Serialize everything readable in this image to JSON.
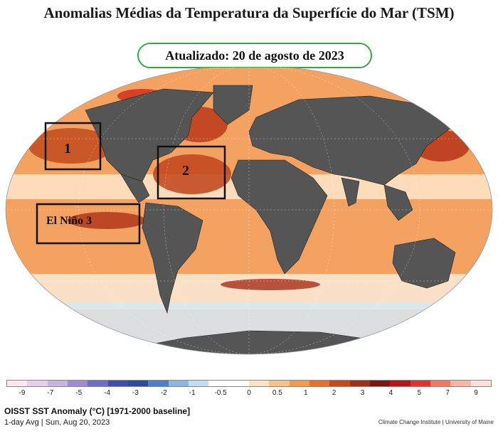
{
  "title": "Anomalias Médias da Temperatura da Superfície do Mar (TSM)",
  "updated_label": "Atualizado: 20 de agosto de 2023",
  "regions": [
    {
      "id": "1",
      "label": "1"
    },
    {
      "id": "2",
      "label": "2"
    },
    {
      "id": "3",
      "label": "El Niño  3"
    }
  ],
  "colorbar": {
    "ticks": [
      "-9",
      "-7",
      "-5",
      "-4",
      "-3",
      "-2",
      "-1",
      "-0.5",
      "0",
      "0.5",
      "1",
      "2",
      "3",
      "4",
      "5",
      "7",
      "9"
    ],
    "colors": [
      "#fbe9f0",
      "#e6cfe8",
      "#c9b3e3",
      "#a08cd6",
      "#6f6cc8",
      "#3f4fae",
      "#2c4aa0",
      "#4d7fc4",
      "#8ab7e2",
      "#c2dcf1",
      "#ffffff",
      "#ffffff",
      "#fde3c3",
      "#fbc189",
      "#f59a4c",
      "#e8702a",
      "#c9481a",
      "#a52c16",
      "#7f1512",
      "#b8151a",
      "#e3312b",
      "#f3765e",
      "#f9b4a2",
      "#fde1d9"
    ]
  },
  "footer": {
    "title": "OISST SST Anomaly (°C) [1971-2000 baseline]",
    "subtitle": "1-day Avg | Sun, Aug 20, 2023",
    "credit": "Climate Change Institute | University of Maine"
  },
  "palette": {
    "land": "#555555",
    "ocean_warm": "#f3964a",
    "ocean_hot": "#c0411a",
    "ocean_neutral": "#fff3e6",
    "ocean_cool": "#c9e0f2"
  }
}
